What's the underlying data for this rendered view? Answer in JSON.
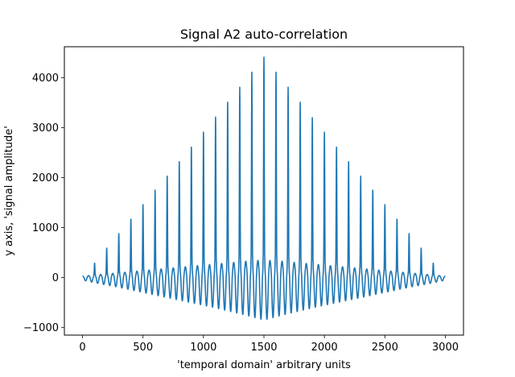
{
  "chart_data": {
    "type": "line",
    "title": "Signal A2 auto-correlation",
    "xlabel": "'temporal domain' arbitrary units",
    "ylabel": "y axis, 'signal amplitude'",
    "xlim": [
      -150,
      3150
    ],
    "ylim": [
      -1150,
      4620
    ],
    "grid": false,
    "legend": "none",
    "x_ticks": [
      0,
      500,
      1000,
      1500,
      2000,
      2500,
      3000
    ],
    "x_tick_labels": [
      "0",
      "500",
      "1000",
      "1500",
      "2000",
      "2500",
      "3000"
    ],
    "y_ticks": [
      -1000,
      0,
      1000,
      2000,
      3000,
      4000
    ],
    "y_tick_labels": [
      "−1000",
      "0",
      "1000",
      "2000",
      "3000",
      "4000"
    ],
    "series": [
      {
        "color": "#1f77b4",
        "x_start": 0,
        "x_end": 3000,
        "peak_spacing": 100,
        "peak_x": [
          0,
          100,
          200,
          300,
          400,
          500,
          600,
          700,
          800,
          900,
          1000,
          1100,
          1200,
          1300,
          1400,
          1500,
          1600,
          1700,
          1800,
          1900,
          2000,
          2100,
          2200,
          2300,
          2400,
          2500,
          2600,
          2700,
          2800,
          2900,
          3000
        ],
        "peak_values": [
          0,
          290,
          590,
          880,
          1170,
          1460,
          1750,
          2030,
          2320,
          2610,
          2910,
          3210,
          3510,
          3810,
          4110,
          4410,
          4110,
          3810,
          3510,
          3200,
          2910,
          2610,
          2320,
          2030,
          1750,
          1460,
          1170,
          880,
          590,
          290,
          0
        ],
        "oscillation_min_envelope": [
          -50,
          -120,
          -180,
          -250,
          -320,
          -390,
          -460,
          -530,
          -600,
          -680,
          -760,
          -850,
          -760,
          -680,
          -600,
          -530,
          -460,
          -390,
          -320,
          -250,
          -180,
          -120,
          -50
        ],
        "oscillation_max_envelope": [
          30,
          60,
          90,
          120,
          150,
          180,
          210,
          240,
          270,
          300,
          330,
          350,
          330,
          300,
          270,
          240,
          210,
          180,
          150,
          120,
          90,
          60,
          30
        ]
      }
    ]
  }
}
